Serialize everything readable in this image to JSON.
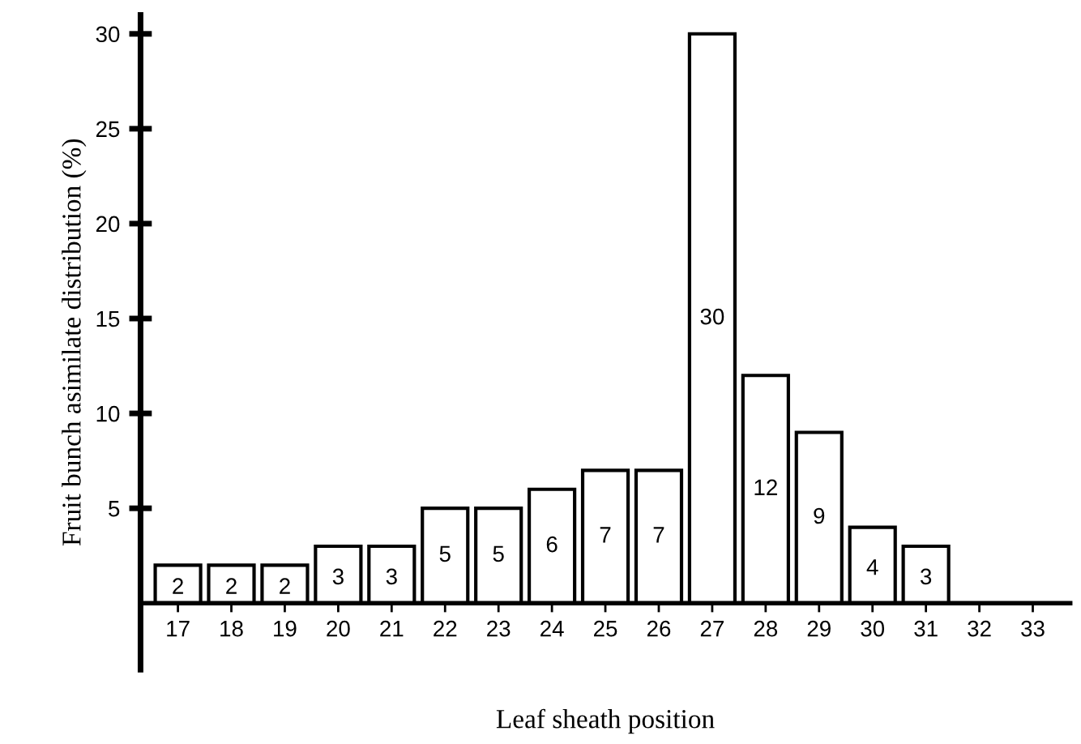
{
  "chart_data": {
    "type": "bar",
    "xlabel": "Leaf sheath position",
    "ylabel": "Fruit bunch asimilate distribution (%)",
    "categories": [
      "17",
      "18",
      "19",
      "20",
      "21",
      "22",
      "23",
      "24",
      "25",
      "26",
      "27",
      "28",
      "29",
      "30",
      "31",
      "32",
      "33"
    ],
    "values": [
      2,
      2,
      2,
      3,
      3,
      5,
      5,
      6,
      7,
      7,
      30,
      12,
      9,
      4,
      3,
      null,
      null
    ],
    "color": "#ffffff",
    "data_labels": true,
    "ylim": [
      -3.5,
      31
    ],
    "yticks": [
      5,
      10,
      15,
      20,
      25,
      30
    ],
    "grid": false
  }
}
